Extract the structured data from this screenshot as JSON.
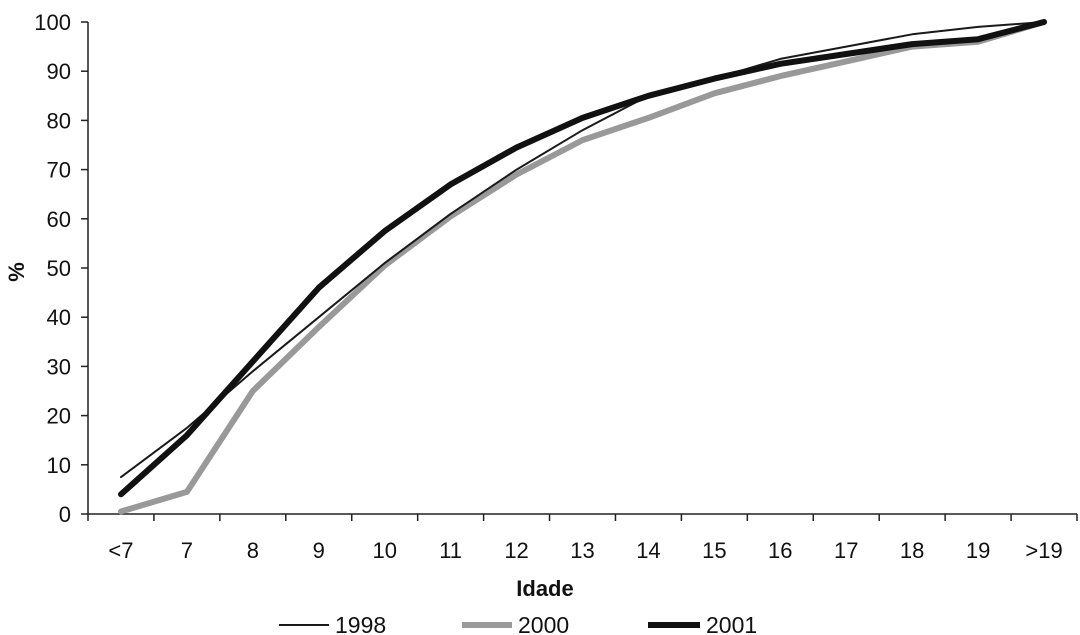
{
  "chart_data": {
    "type": "line",
    "title": "",
    "xlabel": "Idade",
    "ylabel": "%",
    "categories": [
      "<7",
      "7",
      "8",
      "9",
      "10",
      "11",
      "12",
      "13",
      "14",
      "15",
      "16",
      "17",
      "18",
      "19",
      ">19"
    ],
    "ylim": [
      0,
      100
    ],
    "yticks": [
      0,
      10,
      20,
      30,
      40,
      50,
      60,
      70,
      80,
      90,
      100
    ],
    "ytick_labels": [
      "0",
      "10",
      "20",
      "30",
      "40",
      "50",
      "60",
      "70",
      "80",
      "90",
      "100"
    ],
    "grid": false,
    "legend_position": "bottom",
    "series": [
      {
        "name": "1998",
        "color": "#1a1a1a",
        "values": [
          7.5,
          17.5,
          29,
          40,
          51,
          61,
          70,
          78,
          85,
          88.5,
          92.5,
          95,
          97.5,
          99,
          100
        ]
      },
      {
        "name": "2000",
        "color": "#999999",
        "values": [
          0.5,
          4.5,
          25,
          38,
          50.5,
          60.5,
          69,
          76,
          80.5,
          85.5,
          89,
          92,
          95,
          96,
          100
        ]
      },
      {
        "name": "2001",
        "color": "#111111",
        "values": [
          4,
          16,
          31,
          46,
          57.5,
          67,
          74.5,
          80.5,
          85,
          88.5,
          91.5,
          93.5,
          95.5,
          96.5,
          100
        ]
      }
    ]
  }
}
